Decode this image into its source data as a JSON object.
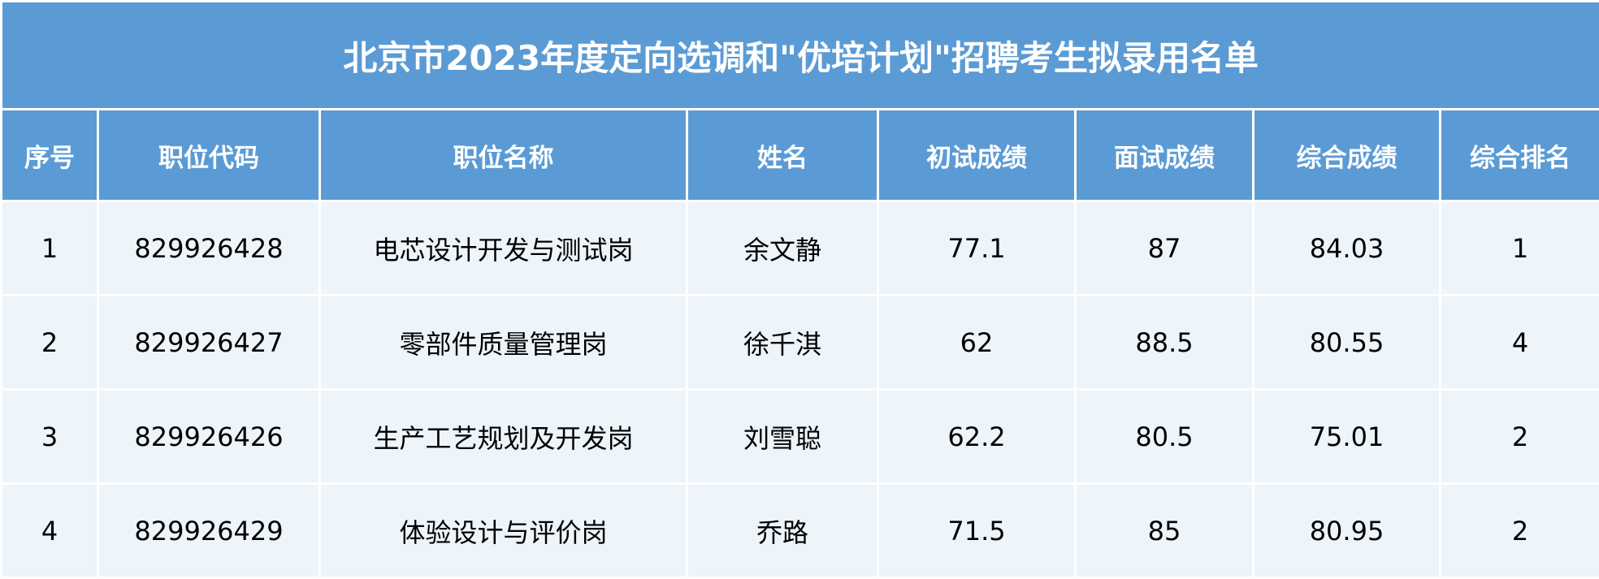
{
  "title": "北京市2023年度定向选调和\"优培计划\"招聘考生拟录用名单",
  "columns": [
    "序号",
    "职位代码",
    "职位名称",
    "姓名",
    "初试成绩",
    "面试成绩",
    "综合成绩",
    "综合排名"
  ],
  "rows": [
    [
      "1",
      "829926428",
      "电芯设计开发与测试岗",
      "余文静",
      "77.1",
      "87",
      "84.03",
      "1"
    ],
    [
      "2",
      "829926427",
      "零部件质量管理岗",
      "徐千淇",
      "62",
      "88.5",
      "80.55",
      "4"
    ],
    [
      "3",
      "829926426",
      "生产工艺规划及开发岗",
      "刘雪聪",
      "62.2",
      "80.5",
      "75.01",
      "2"
    ],
    [
      "4",
      "829926429",
      "体验设计与评价岗",
      "乔路",
      "71.5",
      "85",
      "80.95",
      "2"
    ]
  ],
  "colors": {
    "header_bg": "#5b9bd5",
    "row_bg": "#edf4fa",
    "border": "#ffffff"
  }
}
